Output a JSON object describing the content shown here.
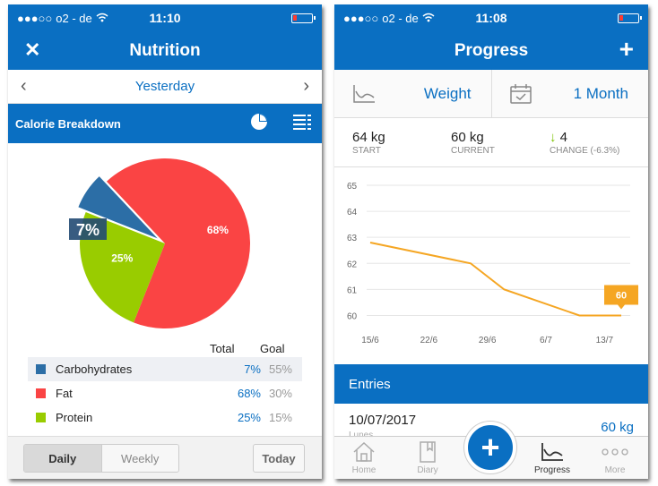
{
  "status": {
    "carrier": "o2 - de",
    "time_left": "11:10",
    "time_right": "11:08"
  },
  "nutrition": {
    "title": "Nutrition",
    "date": "Yesterday",
    "section_title": "Calorie Breakdown",
    "headers": {
      "total": "Total",
      "goal": "Goal"
    },
    "items": [
      {
        "name": "Carbohydrates",
        "total": "7%",
        "goal": "55%",
        "color": "#2c6ea6"
      },
      {
        "name": "Fat",
        "total": "68%",
        "goal": "30%",
        "color": "#fa4444"
      },
      {
        "name": "Protein",
        "total": "25%",
        "goal": "15%",
        "color": "#99cc00"
      }
    ],
    "pie_labels": {
      "fat": "68%",
      "protein": "25%",
      "carbs": "7%"
    },
    "footer": {
      "daily": "Daily",
      "weekly": "Weekly",
      "today": "Today"
    }
  },
  "progress": {
    "title": "Progress",
    "metric": "Weight",
    "range": "1 Month",
    "start": {
      "value": "64 kg",
      "label": "START"
    },
    "current": {
      "value": "60 kg",
      "label": "CURRENT"
    },
    "change": {
      "value": "4",
      "label": "CHANGE (-6.3%)"
    },
    "entries_title": "Entries",
    "entry": {
      "date": "10/07/2017",
      "day": "Lunes",
      "value": "60 kg"
    },
    "tabs": {
      "home": "Home",
      "diary": "Diary",
      "progress": "Progress",
      "more": "More"
    }
  },
  "chart_data": [
    {
      "type": "pie",
      "categories": [
        "Carbohydrates",
        "Fat",
        "Protein"
      ],
      "values": [
        7,
        68,
        25
      ],
      "colors": [
        "#2c6ea6",
        "#fa4444",
        "#99cc00"
      ]
    },
    {
      "type": "line",
      "x": [
        "15/6",
        "22/6",
        "29/6",
        "6/7",
        "13/7"
      ],
      "points": [
        {
          "x": "15/6",
          "y": 62.8
        },
        {
          "x": "27/6",
          "y": 62.0
        },
        {
          "x": "1/7",
          "y": 61.0
        },
        {
          "x": "10/7",
          "y": 60.0
        },
        {
          "x": "15/7",
          "y": 60.0
        }
      ],
      "yticks": [
        65,
        64,
        63,
        62,
        61,
        60
      ],
      "ylim": [
        59.5,
        65
      ],
      "callout": "60",
      "grid": true,
      "color": "#f5a623"
    }
  ]
}
